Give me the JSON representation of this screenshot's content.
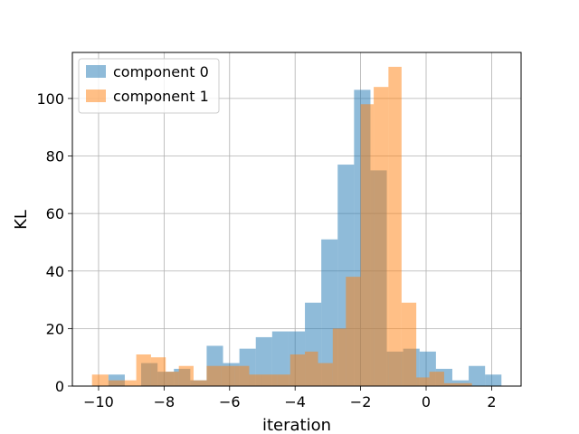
{
  "chart_data": {
    "type": "histogram",
    "xlabel": "iteration",
    "ylabel": "KL",
    "xlim": [
      -10.8,
      2.9
    ],
    "ylim": [
      0,
      116
    ],
    "grid": true,
    "legend_position": "top-left",
    "xticks": [
      -10,
      -8,
      -6,
      -4,
      -2,
      0,
      2
    ],
    "yticks": [
      0,
      20,
      40,
      60,
      80,
      100
    ],
    "series": [
      {
        "name": "component 0",
        "color": "#1f77b4",
        "opacity": 0.5,
        "bins": [
          {
            "x0": -10.2,
            "x1": -9.7,
            "count": 0
          },
          {
            "x0": -9.7,
            "x1": -9.2,
            "count": 4
          },
          {
            "x0": -9.2,
            "x1": -8.7,
            "count": 0
          },
          {
            "x0": -8.7,
            "x1": -8.2,
            "count": 8
          },
          {
            "x0": -8.2,
            "x1": -7.7,
            "count": 5
          },
          {
            "x0": -7.7,
            "x1": -7.2,
            "count": 6
          },
          {
            "x0": -7.2,
            "x1": -6.7,
            "count": 2
          },
          {
            "x0": -6.7,
            "x1": -6.2,
            "count": 14
          },
          {
            "x0": -6.2,
            "x1": -5.7,
            "count": 8
          },
          {
            "x0": -5.7,
            "x1": -5.2,
            "count": 13
          },
          {
            "x0": -5.2,
            "x1": -4.7,
            "count": 17
          },
          {
            "x0": -4.7,
            "x1": -4.2,
            "count": 19
          },
          {
            "x0": -4.2,
            "x1": -3.7,
            "count": 19
          },
          {
            "x0": -3.7,
            "x1": -3.2,
            "count": 29
          },
          {
            "x0": -3.2,
            "x1": -2.7,
            "count": 51
          },
          {
            "x0": -2.7,
            "x1": -2.2,
            "count": 77
          },
          {
            "x0": -2.2,
            "x1": -1.7,
            "count": 103
          },
          {
            "x0": -1.7,
            "x1": -1.2,
            "count": 75
          },
          {
            "x0": -1.2,
            "x1": -0.7,
            "count": 12
          },
          {
            "x0": -0.7,
            "x1": -0.2,
            "count": 13
          },
          {
            "x0": -0.2,
            "x1": 0.3,
            "count": 12
          },
          {
            "x0": 0.3,
            "x1": 0.8,
            "count": 6
          },
          {
            "x0": 0.8,
            "x1": 1.3,
            "count": 2
          },
          {
            "x0": 1.3,
            "x1": 1.8,
            "count": 7
          },
          {
            "x0": 1.8,
            "x1": 2.3,
            "count": 4
          }
        ]
      },
      {
        "name": "component 1",
        "color": "#ff7f0e",
        "opacity": 0.5,
        "bins": [
          {
            "x0": -10.2,
            "x1": -9.7,
            "count": 4
          },
          {
            "x0": -9.7,
            "x1": -9.2,
            "count": 2
          },
          {
            "x0": -9.2,
            "x1": -8.85,
            "count": 2
          },
          {
            "x0": -8.85,
            "x1": -8.4,
            "count": 11
          },
          {
            "x0": -8.4,
            "x1": -7.95,
            "count": 10
          },
          {
            "x0": -7.95,
            "x1": -7.55,
            "count": 5
          },
          {
            "x0": -7.55,
            "x1": -7.1,
            "count": 7
          },
          {
            "x0": -7.1,
            "x1": -6.7,
            "count": 2
          },
          {
            "x0": -6.7,
            "x1": -6.25,
            "count": 7
          },
          {
            "x0": -6.25,
            "x1": -5.85,
            "count": 7
          },
          {
            "x0": -5.85,
            "x1": -5.4,
            "count": 7
          },
          {
            "x0": -5.4,
            "x1": -5.0,
            "count": 4
          },
          {
            "x0": -5.0,
            "x1": -4.55,
            "count": 4
          },
          {
            "x0": -4.55,
            "x1": -4.15,
            "count": 4
          },
          {
            "x0": -4.15,
            "x1": -3.7,
            "count": 11
          },
          {
            "x0": -3.7,
            "x1": -3.3,
            "count": 12
          },
          {
            "x0": -3.3,
            "x1": -2.85,
            "count": 8
          },
          {
            "x0": -2.85,
            "x1": -2.45,
            "count": 20
          },
          {
            "x0": -2.45,
            "x1": -2.0,
            "count": 38
          },
          {
            "x0": -2.0,
            "x1": -1.6,
            "count": 98
          },
          {
            "x0": -1.6,
            "x1": -1.15,
            "count": 104
          },
          {
            "x0": -1.15,
            "x1": -0.75,
            "count": 111
          },
          {
            "x0": -0.75,
            "x1": -0.3,
            "count": 29
          },
          {
            "x0": -0.3,
            "x1": 0.1,
            "count": 3
          },
          {
            "x0": 0.1,
            "x1": 0.55,
            "count": 5
          },
          {
            "x0": 0.55,
            "x1": 0.95,
            "count": 1
          },
          {
            "x0": 0.95,
            "x1": 1.4,
            "count": 1
          }
        ]
      }
    ]
  }
}
